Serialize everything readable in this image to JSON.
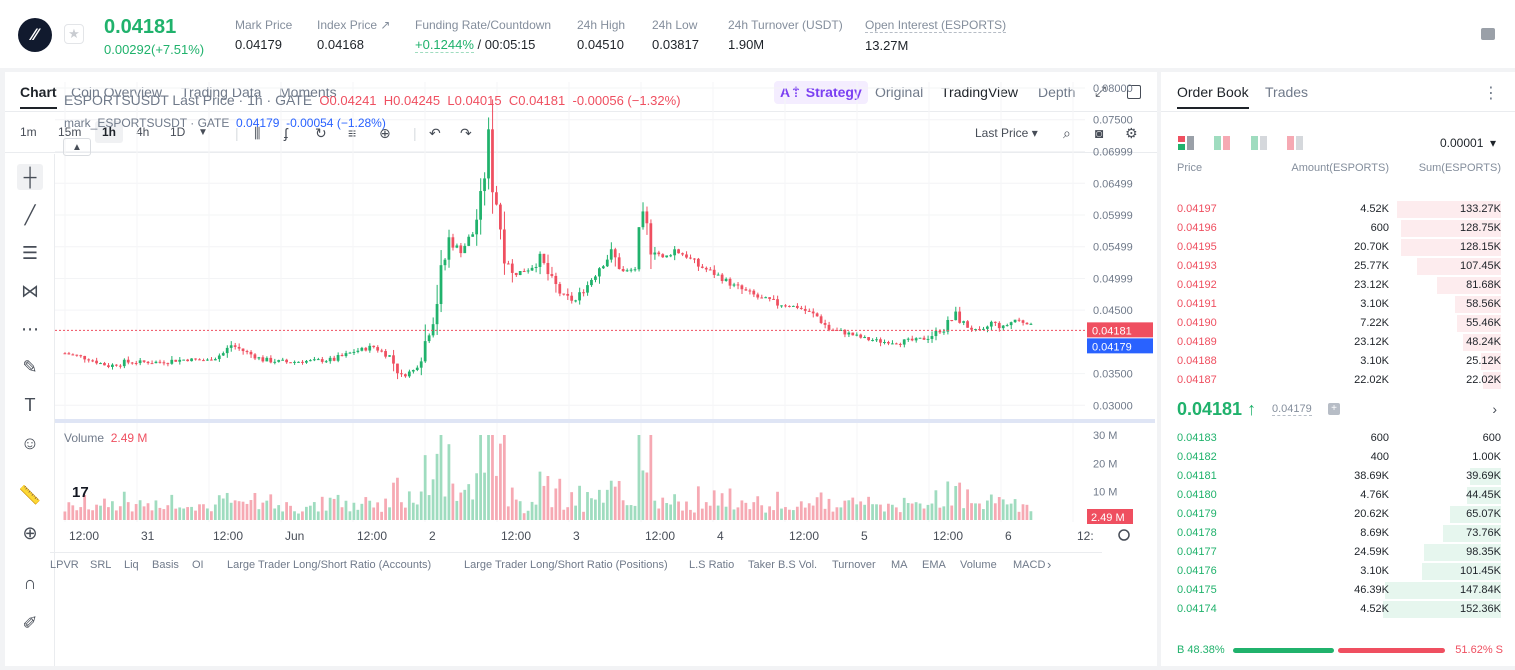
{
  "header": {
    "price": "0.04181",
    "change": "0.00292(+7.51%)",
    "stats": [
      {
        "label": "Mark Price",
        "value": "0.04179"
      },
      {
        "label": "Index Price ↗",
        "value": "0.04168"
      },
      {
        "label": "Funding Rate/Countdown",
        "value": "+0.1244%",
        "value2": "/ 00:05:15"
      },
      {
        "label": "24h High",
        "value": "0.04510"
      },
      {
        "label": "24h Low",
        "value": "0.03817"
      },
      {
        "label": "24h Turnover (USDT)",
        "value": "1.90M"
      },
      {
        "label": "Open Interest (ESPORTS)",
        "value": "13.27M"
      }
    ]
  },
  "chart_tabs": [
    "Chart",
    "Coin Overview",
    "Trading Data",
    "Moments"
  ],
  "strategy_label": "Strategy",
  "view_tabs": [
    "Original",
    "TradingView",
    "Depth"
  ],
  "timeframes": [
    "1m",
    "15m",
    "1h",
    "4h",
    "1D"
  ],
  "price_type": "Last Price",
  "legend": {
    "title": "ESPORTSUSDT Last Price · 1h · GATE",
    "o": "O0.04241",
    "h": "H0.04245",
    "l": "L0.04015",
    "c": "C0.04181",
    "chg": "-0.00056 (−1.32%)",
    "mark_name": "mark_ESPORTSUSDT · GATE",
    "mark_val": "0.04179",
    "mark_chg": "-0.00054 (−1.28%)"
  },
  "volume": {
    "label": "Volume",
    "value": "2.49 M"
  },
  "indicators": [
    "LPVR",
    "SRL",
    "Liq",
    "Basis",
    "OI",
    "Large Trader Long/Short Ratio (Accounts)",
    "Large Trader Long/Short Ratio (Positions)",
    "L.S Ratio",
    "Taker B.S Vol.",
    "Turnover",
    "MA",
    "EMA",
    "Volume",
    "MACD"
  ],
  "colors": {
    "up": "#20b26c",
    "down": "#ef4f60",
    "upSoft": "#9fdcbf",
    "downSoft": "#f6a9b3",
    "mark": "#2962ff"
  },
  "chart_data": {
    "type": "candlestick",
    "series": [
      {
        "name": "ESPORTSUSDT Last Price",
        "last": 0.04181
      },
      {
        "name": "mark_ESPORTSUSDT",
        "last": 0.04179
      }
    ],
    "y_ticks": [
      "0.08000",
      "0.07500",
      "0.06999",
      "0.06499",
      "0.05999",
      "0.05499",
      "0.04999",
      "0.04500",
      "0.03500",
      "0.03000"
    ],
    "ylim": [
      0.028,
      0.08
    ],
    "x_ticks": [
      "12:00",
      "31",
      "12:00",
      "Jun",
      "12:00",
      "2",
      "12:00",
      "3",
      "12:00",
      "4",
      "12:00",
      "5",
      "12:00",
      "6",
      "12:"
    ],
    "last_label": "0.04181",
    "mark_label": "0.04179",
    "volume_ticks": [
      "30 M",
      "20 M",
      "10 M"
    ],
    "volume_ylim": [
      0,
      30
    ],
    "volume_last": "2.49 M",
    "close_path": [
      [
        0,
        0.0382
      ],
      [
        10,
        0.0375
      ],
      [
        22,
        0.0362
      ],
      [
        32,
        0.0368
      ],
      [
        48,
        0.0368
      ],
      [
        60,
        0.0372
      ],
      [
        72,
        0.0371
      ],
      [
        80,
        0.0382
      ],
      [
        84,
        0.0395
      ],
      [
        92,
        0.0383
      ],
      [
        100,
        0.0372
      ],
      [
        112,
        0.0368
      ],
      [
        124,
        0.037
      ],
      [
        136,
        0.0372
      ],
      [
        146,
        0.0385
      ],
      [
        156,
        0.0392
      ],
      [
        164,
        0.0378
      ],
      [
        170,
        0.0345
      ],
      [
        176,
        0.0355
      ],
      [
        182,
        0.04
      ],
      [
        188,
        0.047
      ],
      [
        194,
        0.056
      ],
      [
        200,
        0.0545
      ],
      [
        206,
        0.057
      ],
      [
        210,
        0.062
      ],
      [
        214,
        0.071
      ],
      [
        218,
        0.062
      ],
      [
        222,
        0.0545
      ],
      [
        226,
        0.0505
      ],
      [
        234,
        0.0515
      ],
      [
        240,
        0.053
      ],
      [
        246,
        0.0495
      ],
      [
        252,
        0.047
      ],
      [
        258,
        0.0465
      ],
      [
        264,
        0.049
      ],
      [
        270,
        0.052
      ],
      [
        276,
        0.054
      ],
      [
        282,
        0.051
      ],
      [
        288,
        0.0515
      ],
      [
        292,
        0.0595
      ],
      [
        296,
        0.0555
      ],
      [
        302,
        0.053
      ],
      [
        308,
        0.0545
      ],
      [
        314,
        0.0535
      ],
      [
        320,
        0.052
      ],
      [
        330,
        0.0505
      ],
      [
        340,
        0.0485
      ],
      [
        350,
        0.047
      ],
      [
        360,
        0.046
      ],
      [
        370,
        0.0455
      ],
      [
        380,
        0.044
      ],
      [
        386,
        0.042
      ],
      [
        394,
        0.0415
      ],
      [
        404,
        0.0405
      ],
      [
        414,
        0.04
      ],
      [
        424,
        0.04
      ],
      [
        434,
        0.0405
      ],
      [
        444,
        0.042
      ],
      [
        450,
        0.0442
      ],
      [
        456,
        0.0425
      ],
      [
        462,
        0.0412
      ],
      [
        468,
        0.043
      ],
      [
        474,
        0.0423
      ],
      [
        480,
        0.0435
      ],
      [
        486,
        0.043
      ],
      [
        490,
        0.0418
      ]
    ]
  },
  "book": {
    "tabs": [
      "Order Book",
      "Trades"
    ],
    "precision": "0.00001",
    "headers": [
      "Price",
      "Amount(ESPORTS)",
      "Sum(ESPORTS)"
    ],
    "asks": [
      {
        "price": "0.04197",
        "amount": "4.52K",
        "sum": "133.27K",
        "depth": 0.88
      },
      {
        "price": "0.04196",
        "amount": "600",
        "sum": "128.75K",
        "depth": 0.85
      },
      {
        "price": "0.04195",
        "amount": "20.70K",
        "sum": "128.15K",
        "depth": 0.85
      },
      {
        "price": "0.04193",
        "amount": "25.77K",
        "sum": "107.45K",
        "depth": 0.71
      },
      {
        "price": "0.04192",
        "amount": "23.12K",
        "sum": "81.68K",
        "depth": 0.54
      },
      {
        "price": "0.04191",
        "amount": "3.10K",
        "sum": "58.56K",
        "depth": 0.39
      },
      {
        "price": "0.04190",
        "amount": "7.22K",
        "sum": "55.46K",
        "depth": 0.37
      },
      {
        "price": "0.04189",
        "amount": "23.12K",
        "sum": "48.24K",
        "depth": 0.32
      },
      {
        "price": "0.04188",
        "amount": "3.10K",
        "sum": "25.12K",
        "depth": 0.17
      },
      {
        "price": "0.04187",
        "amount": "22.02K",
        "sum": "22.02K",
        "depth": 0.15
      }
    ],
    "mid_price": "0.04181 ↑",
    "mark_price": "0.04179",
    "bids": [
      {
        "price": "0.04183",
        "amount": "600",
        "sum": "600",
        "depth": 0.0
      },
      {
        "price": "0.04182",
        "amount": "400",
        "sum": "1.00K",
        "depth": 0.0
      },
      {
        "price": "0.04181",
        "amount": "38.69K",
        "sum": "39.69K",
        "depth": 0.26
      },
      {
        "price": "0.04180",
        "amount": "4.76K",
        "sum": "44.45K",
        "depth": 0.29
      },
      {
        "price": "0.04179",
        "amount": "20.62K",
        "sum": "65.07K",
        "depth": 0.43
      },
      {
        "price": "0.04178",
        "amount": "8.69K",
        "sum": "73.76K",
        "depth": 0.49
      },
      {
        "price": "0.04177",
        "amount": "24.59K",
        "sum": "98.35K",
        "depth": 0.65
      },
      {
        "price": "0.04176",
        "amount": "3.10K",
        "sum": "101.45K",
        "depth": 0.67
      },
      {
        "price": "0.04175",
        "amount": "46.39K",
        "sum": "147.84K",
        "depth": 0.98
      },
      {
        "price": "0.04174",
        "amount": "4.52K",
        "sum": "152.36K",
        "depth": 1.0
      }
    ],
    "buy_ratio": "B 48.38%",
    "sell_ratio": "51.62% S",
    "buy_fraction": 0.4838
  }
}
